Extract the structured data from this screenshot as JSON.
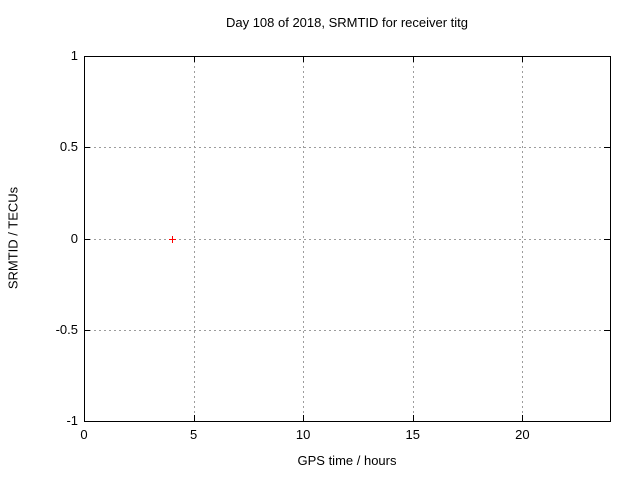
{
  "chart_data": {
    "type": "scatter",
    "title": "Day 108 of 2018, SRMTID for receiver titg",
    "xlabel": "GPS time / hours",
    "ylabel": "SRMTID / TECUs",
    "xlim": [
      0,
      24
    ],
    "ylim": [
      -1,
      1
    ],
    "xticks": [
      0,
      5,
      10,
      15,
      20
    ],
    "yticks": [
      1,
      0.5,
      0,
      -0.5,
      -1
    ],
    "grid": true,
    "legend_position": "none",
    "series": [
      {
        "name": "SRMTID",
        "marker": "plus",
        "marker_color": "#ff0000",
        "points": [
          {
            "x": 4.0,
            "y": 0.0
          }
        ]
      }
    ],
    "colors": {
      "background": "#ffffff",
      "axis": "#000000",
      "grid": "#9c9c9c",
      "text": "#000000",
      "marker": "#ff0000"
    }
  }
}
